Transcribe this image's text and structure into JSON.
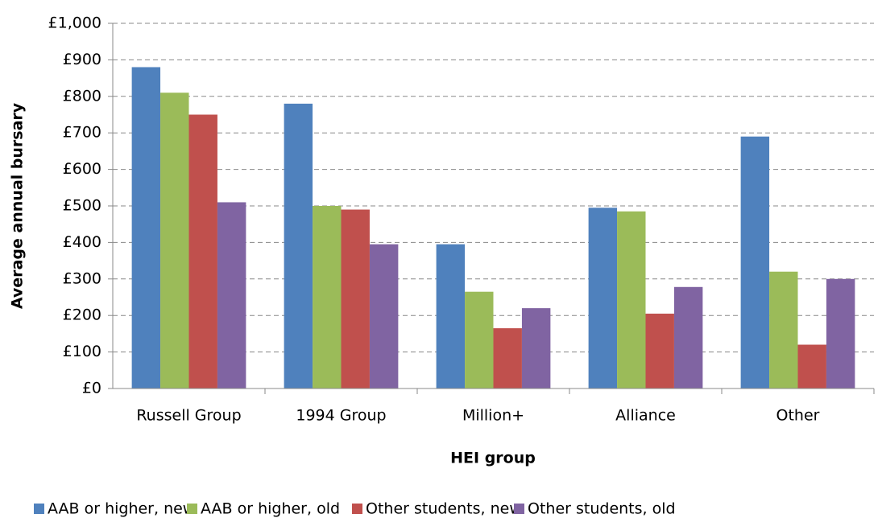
{
  "chart_data": {
    "type": "bar",
    "x_label": "HEI group",
    "y_label": "Average annual bursary",
    "categories": [
      "Russell Group",
      "1994 Group",
      "Million+",
      "Alliance",
      "Other"
    ],
    "series": [
      {
        "name": "AAB or higher, new",
        "color": "#4f81bd",
        "values": [
          880,
          780,
          395,
          495,
          690
        ]
      },
      {
        "name": "AAB or higher, old",
        "color": "#9bbb59",
        "values": [
          810,
          500,
          265,
          485,
          320
        ]
      },
      {
        "name": "Other students, new",
        "color": "#c0504d",
        "values": [
          750,
          490,
          165,
          205,
          120
        ]
      },
      {
        "name": "Other students, old",
        "color": "#8064a2",
        "values": [
          510,
          395,
          220,
          278,
          300
        ]
      }
    ],
    "ylim": [
      0,
      1000
    ],
    "yticks": [
      {
        "value": 0,
        "label": "£0"
      },
      {
        "value": 100,
        "label": "£100"
      },
      {
        "value": 200,
        "label": "£200"
      },
      {
        "value": 300,
        "label": "£300"
      },
      {
        "value": 400,
        "label": "£400"
      },
      {
        "value": 500,
        "label": "£500"
      },
      {
        "value": 600,
        "label": "£600"
      },
      {
        "value": 700,
        "label": "£700"
      },
      {
        "value": 800,
        "label": "£800"
      },
      {
        "value": 900,
        "label": "£900"
      },
      {
        "value": 1000,
        "label": "£1,000"
      }
    ],
    "grid": true,
    "legend": "bottom"
  }
}
